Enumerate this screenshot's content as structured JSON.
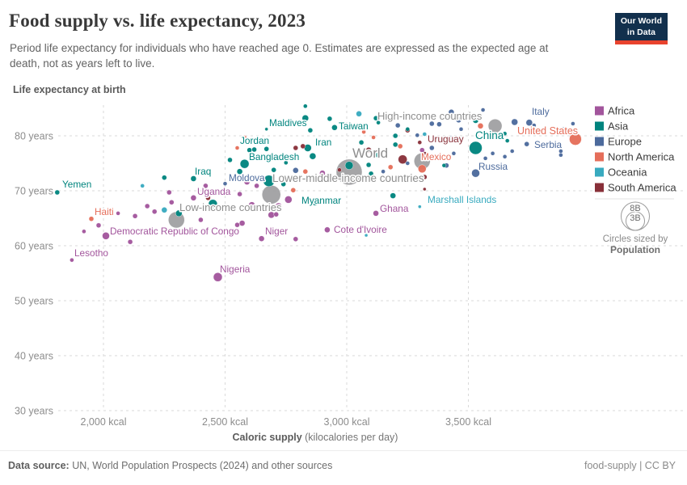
{
  "header": {
    "title": "Food supply vs. life expectancy, 2023",
    "subtitle": "Period life expectancy for individuals who have reached age 0. Estimates are expressed as the expected age at death, not as years left to live.",
    "logo": {
      "line1": "Our World",
      "line2": "in Data"
    }
  },
  "footer": {
    "source_label": "Data source:",
    "source_value": " UN, World Population Prospects (2024) and other sources",
    "slug": "food-supply",
    "separator": " | ",
    "license": "CC BY"
  },
  "legend": {
    "items": [
      {
        "label": "Africa",
        "color": "#a2559c"
      },
      {
        "label": "Asia",
        "color": "#00847e"
      },
      {
        "label": "Europe",
        "color": "#4c6a9c"
      },
      {
        "label": "North America",
        "color": "#e56e5a"
      },
      {
        "label": "Oceania",
        "color": "#38aabf"
      },
      {
        "label": "South America",
        "color": "#883039"
      }
    ],
    "size_legend": {
      "outer_label": "8B",
      "inner_label": "3B",
      "caption_line1": "Circles sized by",
      "caption_line2": "Population"
    }
  },
  "chart_data": {
    "type": "scatter",
    "title": "Food supply vs. life expectancy, 2023",
    "ylabel": "Life expectancy at birth",
    "xlabel_bold": "Caloric supply",
    "xlabel_rest": " (kilocalories per day)",
    "x_unit": "kcal",
    "y_unit": "years",
    "xlim": [
      1790,
      4030
    ],
    "ylim": [
      29,
      85.8
    ],
    "grid": true,
    "legend_position": "right",
    "x_ticks": [
      {
        "value": 2000,
        "label": "2,000 kcal"
      },
      {
        "value": 2500,
        "label": "2,500 kcal"
      },
      {
        "value": 3000,
        "label": "3,000 kcal"
      },
      {
        "value": 3500,
        "label": "3,500 kcal"
      }
    ],
    "y_ticks": [
      {
        "value": 30,
        "label": "30 years"
      },
      {
        "value": 40,
        "label": "40 years"
      },
      {
        "value": 50,
        "label": "50 years"
      },
      {
        "value": 60,
        "label": "60 years"
      },
      {
        "value": 70,
        "label": "70 years"
      },
      {
        "value": 80,
        "label": "80 years"
      }
    ],
    "continent_colors": {
      "Africa": "#a2559c",
      "Asia": "#00847e",
      "Europe": "#4c6a9c",
      "North America": "#e56e5a",
      "Oceania": "#38aabf",
      "South America": "#883039"
    },
    "aggregate_color": "#9b9b9d",
    "aggregate_label_color": "#8e8e8e",
    "points_format": [
      "entity",
      "continent",
      "kcal",
      "life_expectancy_years",
      "radius_px",
      "label_x",
      "label_y",
      "label_font_px"
    ],
    "points": [
      [
        "World",
        "aggregate",
        3010,
        73.4,
        16,
        436,
        195,
        17
      ],
      [
        "High-income countries",
        "aggregate",
        3610,
        81.8,
        8.5,
        467,
        148,
        13
      ],
      [
        "Lower-middle-income countries",
        "aggregate",
        2690,
        69.3,
        11.5,
        337,
        225,
        13.5
      ],
      [
        "Low-income countries",
        "aggregate",
        2300,
        64.7,
        10,
        222,
        261,
        13
      ],
      [
        "",
        "aggregate",
        3310,
        75.4,
        10
      ],
      [
        "",
        "Asia",
        2680,
        71.8,
        7
      ],
      [
        "Yemen",
        "Asia",
        1810,
        69.7,
        3,
        77,
        232,
        null
      ],
      [
        "Haiti",
        "North America",
        1950,
        64.9,
        3,
        117,
        266,
        null
      ],
      [
        "Lesotho",
        "Africa",
        1870,
        57.4,
        2.5,
        92,
        317,
        null
      ],
      [
        "Democratic Republic of Congo",
        "Africa",
        2010,
        61.8,
        4.5,
        136,
        290,
        null
      ],
      [
        "Uganda",
        "Africa",
        2370,
        68.7,
        3.5,
        244,
        241,
        null
      ],
      [
        "Iraq",
        "Asia",
        2370,
        72.2,
        3.5,
        241,
        216,
        null
      ],
      [
        "Moldova",
        "Europe",
        2500,
        71.3,
        2.5,
        283,
        224,
        null
      ],
      [
        "Jordan",
        "Asia",
        2600,
        77.4,
        3,
        297,
        178,
        null
      ],
      [
        "Bangladesh",
        "Asia",
        2580,
        74.9,
        5.5,
        308,
        198,
        null
      ],
      [
        "Maldives",
        "Asia",
        2670,
        81.2,
        2,
        333,
        156,
        null
      ],
      [
        "Niger",
        "Africa",
        2650,
        61.3,
        3.5,
        328,
        290,
        null
      ],
      [
        "Nigeria",
        "Africa",
        2470,
        54.3,
        5.5,
        272,
        337,
        null
      ],
      [
        "Myanmar",
        "Asia",
        2870,
        67.9,
        4,
        373,
        252,
        null
      ],
      [
        "Iran",
        "Asia",
        2840,
        77.8,
        4.5,
        390,
        180,
        null
      ],
      [
        "Taiwan",
        "Asia",
        2950,
        81.5,
        3.5,
        419,
        160,
        null
      ],
      [
        "Cote d'Ivoire",
        "Africa",
        2920,
        62.9,
        3.5,
        413,
        288,
        null
      ],
      [
        "Ghana",
        "Africa",
        3120,
        65.9,
        3.5,
        470,
        262,
        null
      ],
      [
        "Marshall Islands",
        "Oceania",
        3300,
        67.1,
        2,
        529,
        251,
        null
      ],
      [
        "Mexico",
        "North America",
        3310,
        74.0,
        5,
        521,
        198,
        null
      ],
      [
        "Uruguay",
        "South America",
        3300,
        78.8,
        2.5,
        529,
        176,
        null
      ],
      [
        "Russia",
        "Europe",
        3530,
        73.2,
        5,
        592,
        210,
        null
      ],
      [
        "China",
        "Asia",
        3530,
        77.8,
        8,
        588,
        172,
        13.5
      ],
      [
        "Serbia",
        "Europe",
        3880,
        77.2,
        2.5,
        661,
        183,
        null
      ],
      [
        "Italy",
        "Europe",
        3750,
        82.4,
        4,
        658,
        142,
        null
      ],
      [
        "United States",
        "North America",
        3940,
        79.4,
        7.5,
        640,
        166,
        12.5
      ],
      [
        "",
        "Asia",
        2830,
        85.4,
        2.5
      ],
      [
        "",
        "Asia",
        2830,
        83.2,
        4
      ],
      [
        "",
        "Asia",
        3120,
        83.2,
        3
      ],
      [
        "",
        "Asia",
        3200,
        80.0,
        3
      ],
      [
        "",
        "Asia",
        3130,
        82.4,
        2.5
      ],
      [
        "",
        "Asia",
        3530,
        82.8,
        3.5
      ],
      [
        "",
        "Asia",
        3650,
        80.4,
        2.5
      ],
      [
        "",
        "Asia",
        3660,
        79.1,
        2.5
      ],
      [
        "",
        "Asia",
        3400,
        74.6,
        2.5
      ],
      [
        "",
        "Asia",
        3250,
        81.2,
        2.5
      ],
      [
        "",
        "Asia",
        2860,
        76.3,
        4
      ],
      [
        "",
        "Asia",
        3010,
        74.6,
        5
      ],
      [
        "",
        "Asia",
        3090,
        74.7,
        3
      ],
      [
        "",
        "Asia",
        3130,
        76.5,
        3.5
      ],
      [
        "",
        "Asia",
        3060,
        78.8,
        3
      ],
      [
        "",
        "Asia",
        3200,
        78.4,
        3
      ],
      [
        "",
        "Asia",
        3100,
        73.1,
        3
      ],
      [
        "",
        "Asia",
        3190,
        69.1,
        3.5
      ],
      [
        "",
        "Asia",
        2250,
        72.4,
        3
      ],
      [
        "",
        "Asia",
        2620,
        77.5,
        3
      ],
      [
        "",
        "Asia",
        2670,
        77.6,
        3
      ],
      [
        "",
        "Asia",
        2520,
        75.6,
        3
      ],
      [
        "",
        "Asia",
        2450,
        67.6,
        5.5
      ],
      [
        "",
        "Asia",
        2310,
        65.9,
        4
      ],
      [
        "",
        "Asia",
        2740,
        71.2,
        3
      ],
      [
        "",
        "Asia",
        2700,
        73.8,
        3
      ],
      [
        "",
        "Asia",
        2750,
        75.1,
        2.5
      ],
      [
        "",
        "Asia",
        2560,
        73.5,
        3.5
      ],
      [
        "",
        "Asia",
        2930,
        83.1,
        3
      ],
      [
        "",
        "Asia",
        2850,
        81.0,
        3
      ],
      [
        "",
        "Europe",
        3210,
        81.9,
        3
      ],
      [
        "",
        "Europe",
        3350,
        82.2,
        3
      ],
      [
        "",
        "Europe",
        3380,
        82.1,
        3
      ],
      [
        "",
        "Europe",
        3430,
        84.3,
        3.5
      ],
      [
        "",
        "Europe",
        3460,
        82.9,
        3.5
      ],
      [
        "",
        "Europe",
        3560,
        84.7,
        2.5
      ],
      [
        "",
        "Europe",
        3690,
        82.5,
        4
      ],
      [
        "",
        "Europe",
        3930,
        82.2,
        2.5
      ],
      [
        "",
        "Europe",
        3740,
        78.5,
        3
      ],
      [
        "",
        "Europe",
        3680,
        77.2,
        2.5
      ],
      [
        "",
        "Europe",
        3650,
        76.2,
        2.5
      ],
      [
        "",
        "Europe",
        3880,
        76.5,
        2.5
      ],
      [
        "",
        "Europe",
        3890,
        81.2,
        2.5
      ],
      [
        "",
        "Europe",
        3290,
        80.1,
        2.5
      ],
      [
        "",
        "Europe",
        3430,
        79.6,
        3
      ],
      [
        "",
        "Europe",
        3350,
        77.8,
        3
      ],
      [
        "",
        "Europe",
        3440,
        76.8,
        2.5
      ],
      [
        "",
        "Europe",
        3410,
        74.6,
        3
      ],
      [
        "",
        "Europe",
        3570,
        75.9,
        2.5
      ],
      [
        "",
        "Europe",
        3600,
        76.8,
        2.5
      ],
      [
        "",
        "Europe",
        3470,
        81.2,
        2.5
      ],
      [
        "",
        "Europe",
        2790,
        73.7,
        3.5
      ],
      [
        "",
        "Europe",
        3150,
        73.5,
        2.5
      ],
      [
        "",
        "Europe",
        3250,
        75.0,
        2.5
      ],
      [
        "",
        "Europe",
        3770,
        81.9,
        2.5
      ],
      [
        "",
        "Africa",
        2900,
        73.2,
        3.5
      ],
      [
        "",
        "Africa",
        3310,
        77.4,
        3
      ],
      [
        "",
        "Africa",
        2400,
        64.7,
        3
      ],
      [
        "",
        "Africa",
        2270,
        69.7,
        3
      ],
      [
        "",
        "Africa",
        2280,
        67.9,
        3
      ],
      [
        "",
        "Africa",
        2180,
        67.2,
        3
      ],
      [
        "",
        "Africa",
        2210,
        66.2,
        3
      ],
      [
        "",
        "Africa",
        2130,
        65.4,
        3
      ],
      [
        "",
        "Africa",
        1980,
        63.7,
        3
      ],
      [
        "",
        "Africa",
        1920,
        62.6,
        2.5
      ],
      [
        "",
        "Africa",
        2110,
        60.7,
        3
      ],
      [
        "",
        "Africa",
        2060,
        65.9,
        2.5
      ],
      [
        "",
        "Africa",
        2550,
        63.8,
        3
      ],
      [
        "",
        "Africa",
        2570,
        64.1,
        3.5
      ],
      [
        "",
        "Africa",
        2690,
        65.6,
        4
      ],
      [
        "",
        "Africa",
        2710,
        65.7,
        3
      ],
      [
        "",
        "Africa",
        2790,
        61.2,
        3
      ],
      [
        "",
        "Africa",
        2720,
        67.2,
        4
      ],
      [
        "",
        "Africa",
        2760,
        68.4,
        4.5
      ],
      [
        "",
        "Africa",
        2610,
        67.4,
        4
      ],
      [
        "",
        "Africa",
        2500,
        66.8,
        3
      ],
      [
        "",
        "Africa",
        2420,
        70.9,
        3
      ],
      [
        "",
        "Africa",
        2560,
        69.4,
        3
      ],
      [
        "",
        "Africa",
        2630,
        70.9,
        3
      ],
      [
        "",
        "Africa",
        2590,
        71.6,
        3.5
      ],
      [
        "",
        "North America",
        3070,
        80.7,
        2.5
      ],
      [
        "",
        "North America",
        3110,
        79.7,
        2.5
      ],
      [
        "",
        "North America",
        2830,
        73.5,
        3
      ],
      [
        "",
        "North America",
        2550,
        77.8,
        2.5
      ],
      [
        "",
        "North America",
        2580,
        79.7,
        2.5
      ],
      [
        "",
        "North America",
        3550,
        81.8,
        3.5
      ],
      [
        "",
        "North America",
        3220,
        78.1,
        3
      ],
      [
        "",
        "North America",
        3180,
        74.3,
        3
      ],
      [
        "",
        "North America",
        2780,
        70.1,
        3
      ],
      [
        "",
        "Oceania",
        3050,
        84.0,
        3.5
      ],
      [
        "",
        "Oceania",
        3320,
        80.3,
        2.5
      ],
      [
        "",
        "Oceania",
        3080,
        61.9,
        2
      ],
      [
        "",
        "Oceania",
        2160,
        70.9,
        2.5
      ],
      [
        "",
        "Oceania",
        2250,
        66.5,
        3.5
      ],
      [
        "",
        "South America",
        2790,
        77.8,
        3
      ],
      [
        "",
        "South America",
        2820,
        78.1,
        3
      ],
      [
        "",
        "South America",
        3230,
        75.7,
        5.5
      ],
      [
        "",
        "South America",
        3320,
        72.5,
        3
      ],
      [
        "",
        "South America",
        3320,
        70.3,
        2
      ],
      [
        "",
        "South America",
        3250,
        81.0,
        3
      ],
      [
        "",
        "South America",
        3090,
        77.4,
        3.5
      ],
      [
        "",
        "South America",
        3320,
        76.6,
        3.5
      ],
      [
        "",
        "South America",
        2970,
        73.8,
        2.5
      ],
      [
        "",
        "South America",
        2430,
        68.7,
        3
      ]
    ]
  }
}
